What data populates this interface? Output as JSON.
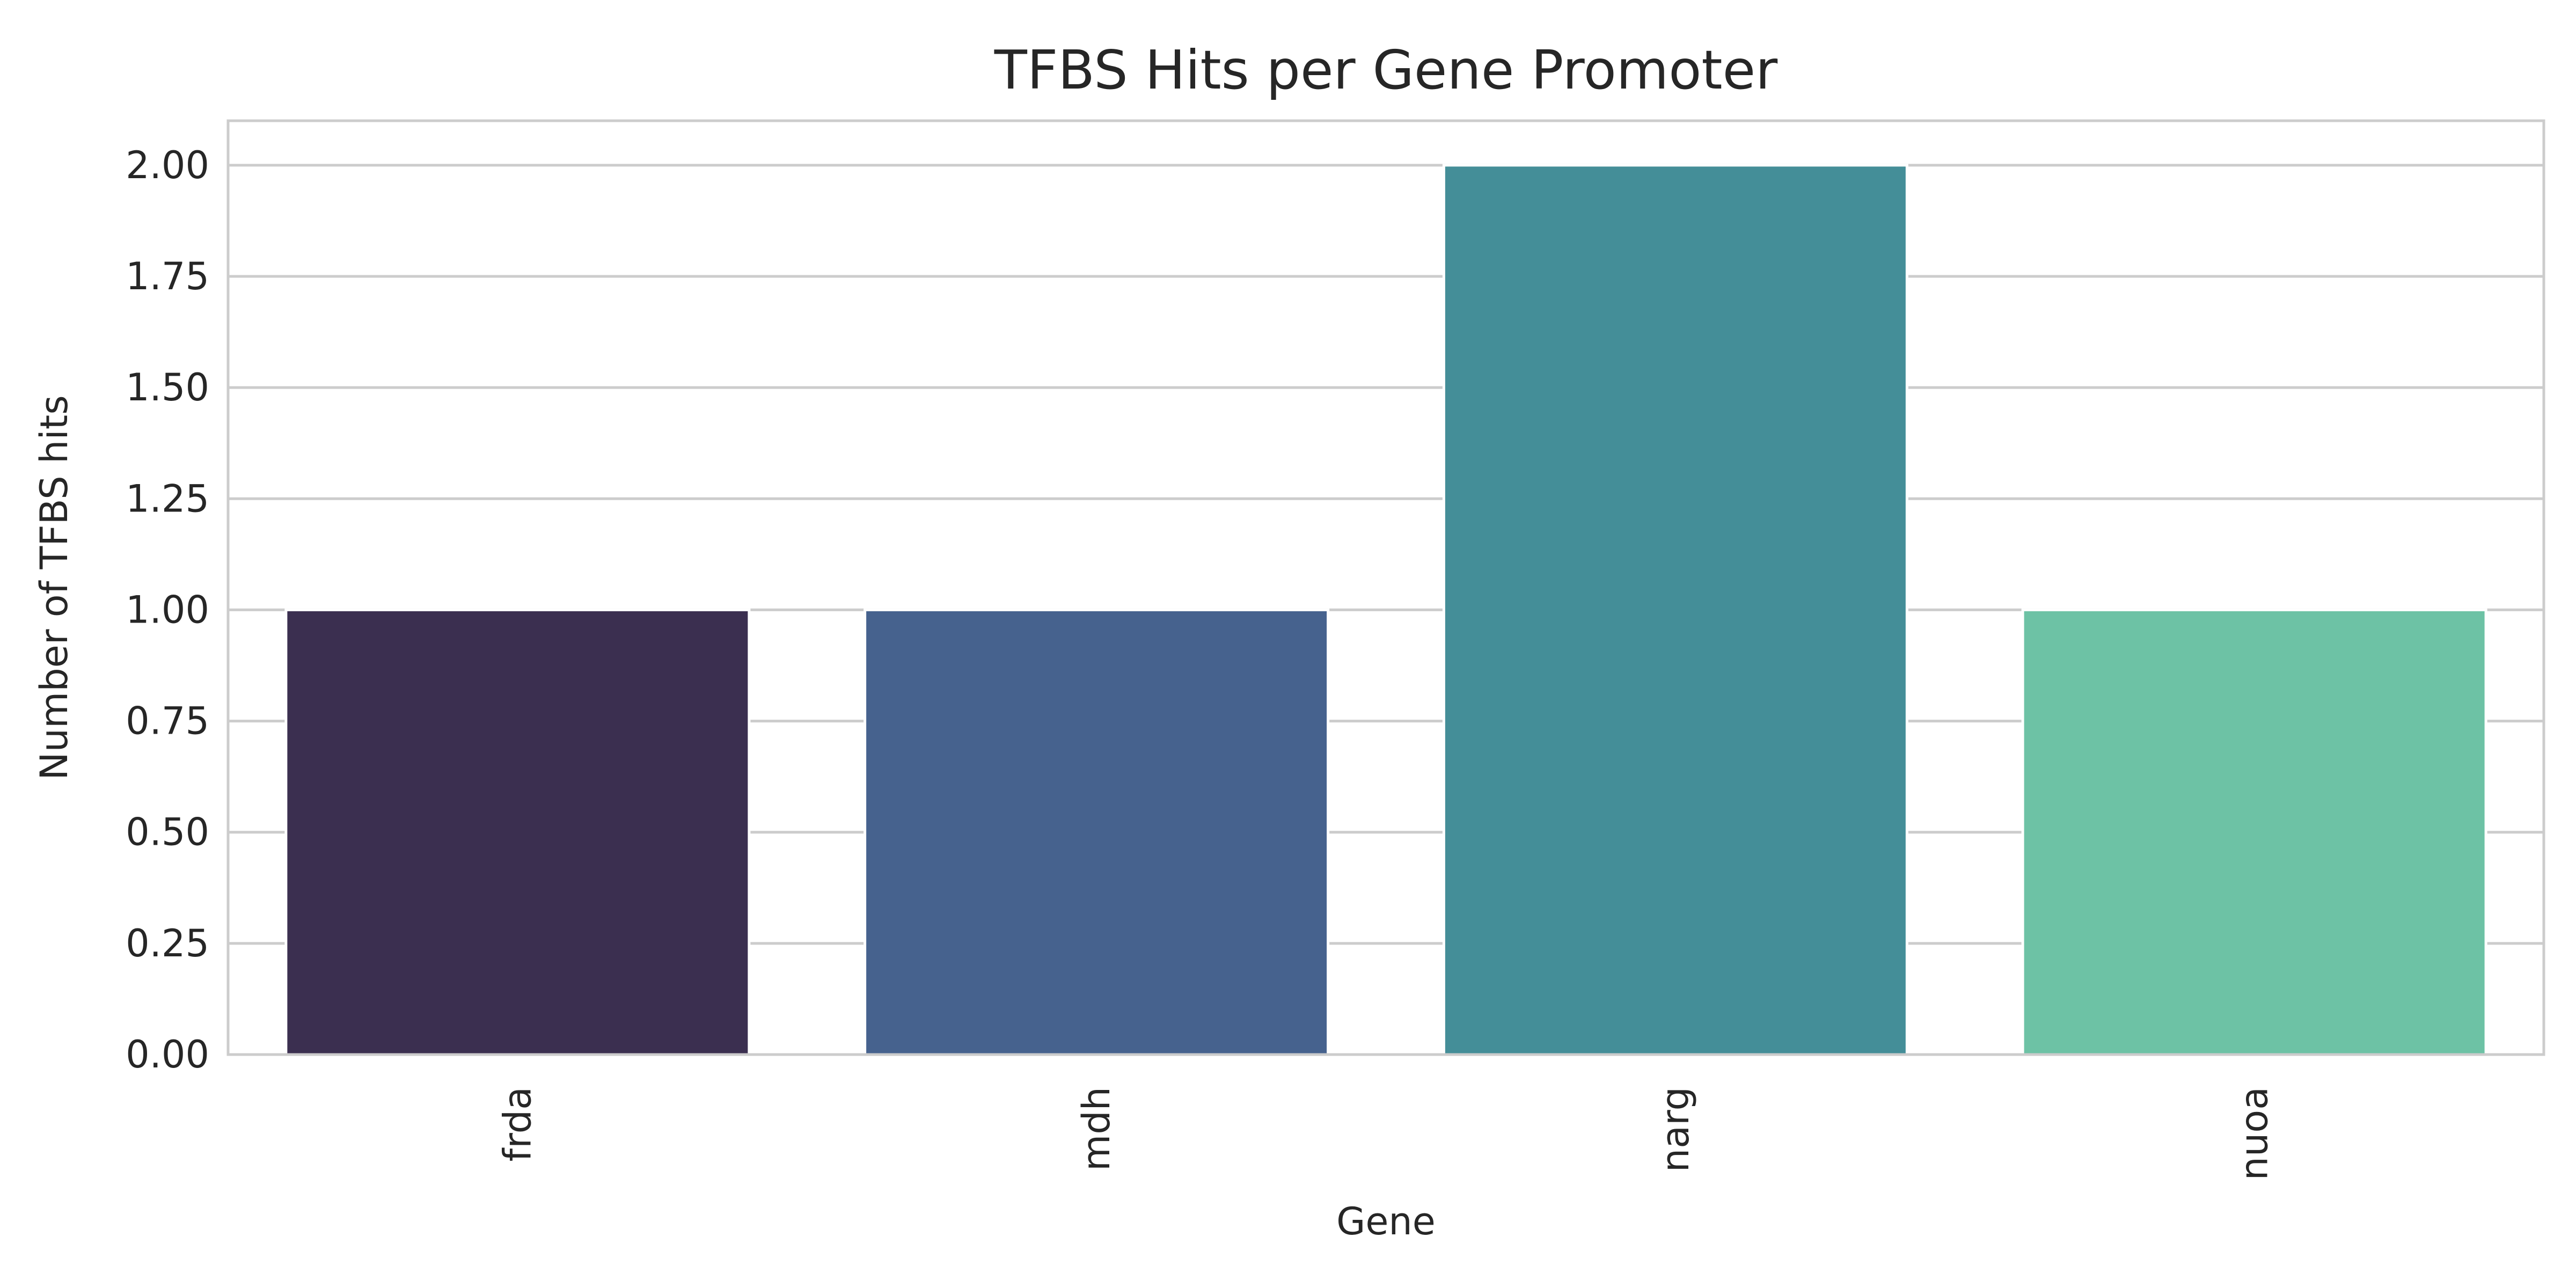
{
  "chart_data": {
    "type": "bar",
    "title": "TFBS Hits per Gene Promoter",
    "xlabel": "Gene",
    "ylabel": "Number of TFBS hits",
    "categories": [
      "frda",
      "mdh",
      "narg",
      "nuoa"
    ],
    "values": [
      1,
      1,
      2,
      1
    ],
    "colors": [
      "#3b2f50",
      "#46628e",
      "#448e98",
      "#6dc2a5"
    ],
    "ylim": [
      0,
      2.1
    ],
    "yticks": [
      0,
      0.25,
      0.5,
      0.75,
      1.0,
      1.25,
      1.5,
      1.75,
      2.0
    ],
    "ytick_labels": [
      "0.00",
      "0.25",
      "0.50",
      "0.75",
      "1.00",
      "1.25",
      "1.50",
      "1.75",
      "2.00"
    ],
    "grid": true,
    "xtick_rotation": "vertical"
  }
}
